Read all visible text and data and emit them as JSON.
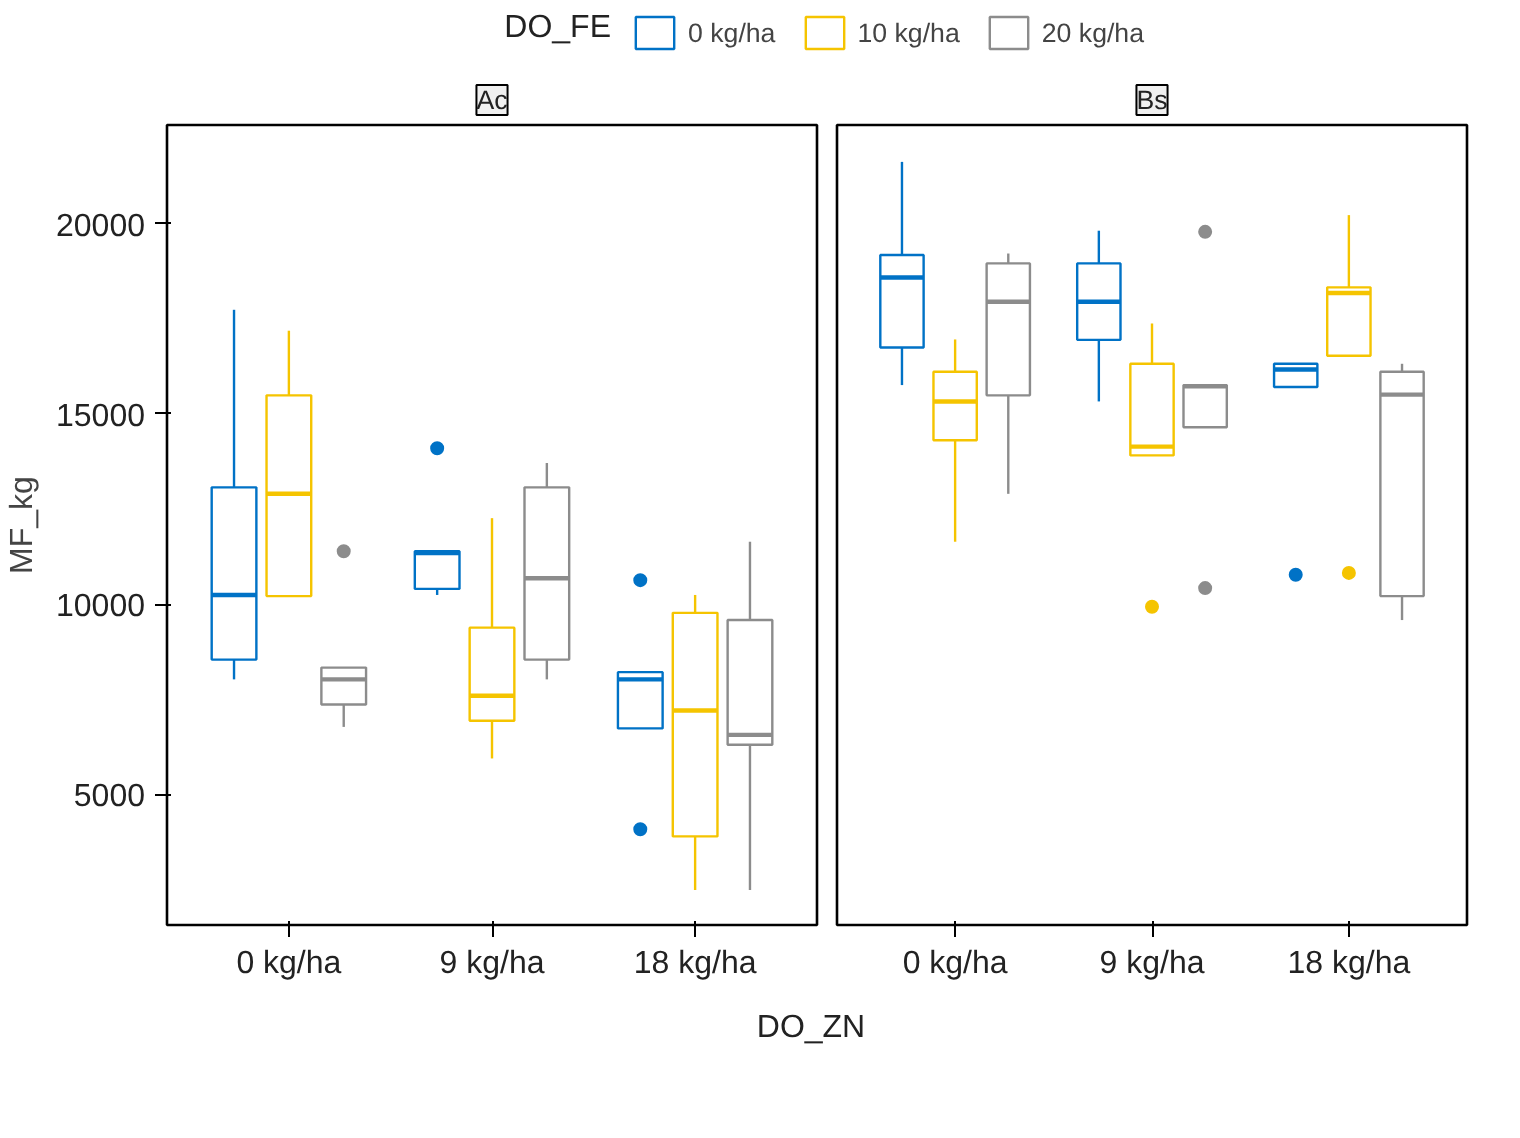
{
  "chart_data": [
    {
      "type": "box",
      "title": "Ac",
      "ylabel": "MF_kg",
      "xlabel": "DO_ZN",
      "legend_title": "DO_FE",
      "legend": "top",
      "grid": false,
      "categories": [
        "0 kg/ha",
        "9 kg/ha",
        "18 kg/ha"
      ],
      "ylim": [
        1560,
        22600
      ],
      "yticks": [
        5000,
        10000,
        15000,
        20000
      ],
      "series": [
        {
          "name": "0 kg/ha",
          "color": "#0072c6",
          "boxes": [
            {
              "low": 8020,
              "q1": 8540,
              "median": 10240,
              "q3": 13070,
              "high": 17740
            },
            {
              "low": 10240,
              "q1": 10400,
              "median": 11340,
              "q3": 11390,
              "high": 11390,
              "outliers": [
                14100
              ]
            },
            {
              "low": 6730,
              "q1": 6730,
              "median": 8020,
              "q3": 8210,
              "high": 8210,
              "outliers": [
                10630,
                4080
              ]
            }
          ]
        },
        {
          "name": "10 kg/ha",
          "color": "#f5c400",
          "boxes": [
            {
              "low": 10210,
              "q1": 10210,
              "median": 12900,
              "q3": 15490,
              "high": 17190
            },
            {
              "low": 5940,
              "q1": 6930,
              "median": 7590,
              "q3": 9380,
              "high": 12260
            },
            {
              "low": 2480,
              "q1": 3890,
              "median": 7200,
              "q3": 9770,
              "high": 10240
            }
          ]
        },
        {
          "name": "20 kg/ha",
          "color": "#8c8c8c",
          "boxes": [
            {
              "low": 6770,
              "q1": 7360,
              "median": 8020,
              "q3": 8330,
              "high": 8330,
              "outliers": [
                11390
              ]
            },
            {
              "low": 8020,
              "q1": 8540,
              "median": 10680,
              "q3": 13070,
              "high": 13710
            },
            {
              "low": 2480,
              "q1": 6300,
              "median": 6560,
              "q3": 9580,
              "high": 11640
            }
          ]
        }
      ]
    },
    {
      "type": "box",
      "title": "Bs",
      "tick_labels": "x",
      "grid": false,
      "categories": [
        "0 kg/ha",
        "9 kg/ha",
        "18 kg/ha"
      ],
      "ylim": [
        1560,
        22600
      ],
      "series": [
        {
          "color": "#0072c6",
          "boxes": [
            {
              "low": 15760,
              "q1": 16750,
              "median": 18590,
              "q3": 19180,
              "high": 21630
            },
            {
              "low": 15330,
              "q1": 16950,
              "median": 17950,
              "q3": 18960,
              "high": 19820
            },
            {
              "low": 15710,
              "q1": 15710,
              "median": 16170,
              "q3": 16320,
              "high": 16320,
              "outliers": [
                10770
              ]
            }
          ]
        },
        {
          "color": "#f5c400",
          "boxes": [
            {
              "low": 11640,
              "q1": 14310,
              "median": 15330,
              "q3": 16110,
              "high": 16960
            },
            {
              "low": 13910,
              "q1": 13910,
              "median": 14140,
              "q3": 16320,
              "high": 17380,
              "outliers": [
                9930
              ]
            },
            {
              "low": 16530,
              "q1": 16530,
              "median": 18180,
              "q3": 18330,
              "high": 20230,
              "outliers": [
                10820
              ]
            }
          ]
        },
        {
          "color": "#8c8c8c",
          "boxes": [
            {
              "low": 12900,
              "q1": 15490,
              "median": 17950,
              "q3": 18960,
              "high": 19220
            },
            {
              "low": 14650,
              "q1": 14650,
              "median": 15730,
              "q3": 15760,
              "high": 15760,
              "outliers": [
                19790,
                10420
              ]
            },
            {
              "low": 9580,
              "q1": 10210,
              "median": 15510,
              "q3": 16110,
              "high": 16320
            }
          ]
        }
      ]
    }
  ]
}
